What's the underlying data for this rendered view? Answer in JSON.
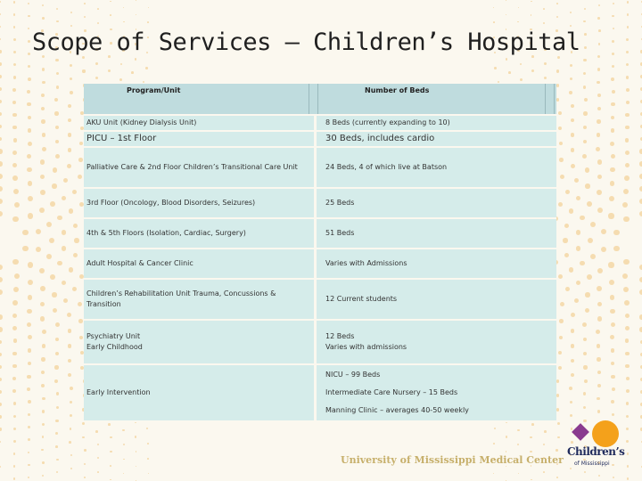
{
  "title": "Scope of Services – Children’s Hospital",
  "table": {
    "headers": {
      "program": "Program/Unit",
      "beds": "Number of Beds"
    },
    "rows": [
      {
        "program": [
          "AKU Unit (Kidney Dialysis Unit)"
        ],
        "beds": [
          "8 Beds (currently expanding to 10)"
        ]
      },
      {
        "program": [
          "PICU – 1st Floor"
        ],
        "beds": [
          "30 Beds, includes cardio"
        ]
      },
      {
        "program": [
          "Palliative Care & 2nd Floor Children’s Transitional Care Unit"
        ],
        "beds": [
          "24 Beds, 4 of which live at Batson"
        ]
      },
      {
        "program": [
          "3rd Floor (Oncology, Blood Disorders, Seizures)"
        ],
        "beds": [
          "25 Beds"
        ]
      },
      {
        "program": [
          "4th & 5th Floors (Isolation, Cardiac, Surgery)"
        ],
        "beds": [
          "51 Beds"
        ]
      },
      {
        "program": [
          "Adult Hospital & Cancer Clinic"
        ],
        "beds": [
          "Varies with Admissions"
        ]
      },
      {
        "program": [
          "Children’s Rehabilitation Unit Trauma, Concussions & Transition"
        ],
        "beds": [
          "12 Current students"
        ]
      },
      {
        "program": [
          "Psychiatry Unit",
          "Early Childhood"
        ],
        "beds": [
          "12 Beds",
          "Varies with admissions"
        ]
      },
      {
        "program": [
          "Early Intervention"
        ],
        "beds": [
          "NICU – 99 Beds",
          "Intermediate Care Nursery – 15 Beds",
          "Manning Clinic – averages 40-50 weekly"
        ]
      }
    ]
  },
  "footer": {
    "university": "University of Mississippi Medical Center",
    "logo_brand": "Children’s",
    "logo_sub": "of Mississippi"
  },
  "colors": {
    "background": "#fbf8ef",
    "table_header": "#bfdcde",
    "table_body": "#d5ecea",
    "dots": "#f5dcb0",
    "logo_sun": "#f4a11b",
    "logo_text": "#1f2a5c"
  }
}
